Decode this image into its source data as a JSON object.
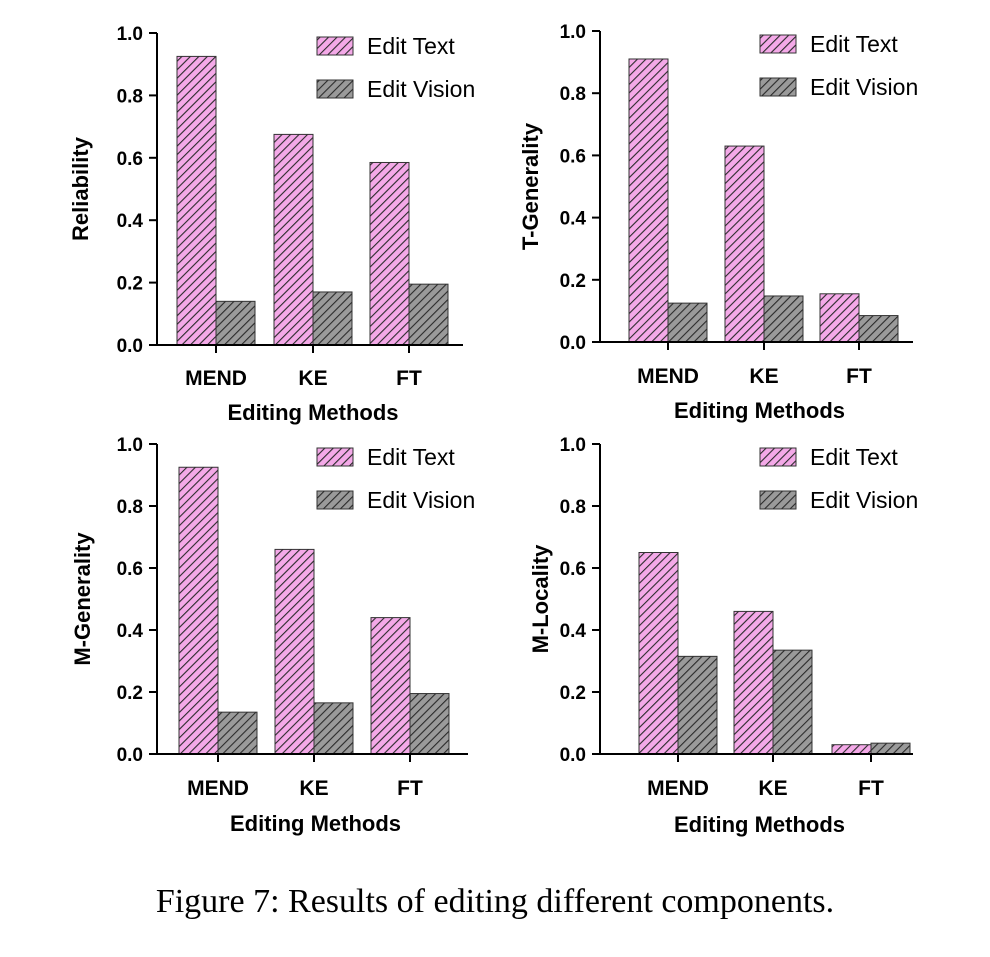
{
  "caption": "Figure 7: Results of editing different components.",
  "colors": {
    "edit_text": "#f4a9e8",
    "edit_vision": "#9a9a9a",
    "hatch": "#2a2a2a",
    "axis": "#000000"
  },
  "chart_data": [
    {
      "type": "bar",
      "categories": [
        "MEND",
        "KE",
        "FT"
      ],
      "series": [
        {
          "name": "Edit Text",
          "values": [
            0.925,
            0.675,
            0.585
          ]
        },
        {
          "name": "Edit Vision",
          "values": [
            0.14,
            0.17,
            0.195
          ]
        }
      ],
      "xlabel": "Editing Methods",
      "ylabel": "Reliability",
      "ylim": [
        0,
        1.0
      ],
      "yticks": [
        "0.0",
        "0.2",
        "0.4",
        "0.6",
        "0.8",
        "1.0"
      ],
      "legend": "top-right",
      "grid": false
    },
    {
      "type": "bar",
      "categories": [
        "MEND",
        "KE",
        "FT"
      ],
      "series": [
        {
          "name": "Edit Text",
          "values": [
            0.91,
            0.63,
            0.155
          ]
        },
        {
          "name": "Edit Vision",
          "values": [
            0.125,
            0.148,
            0.085
          ]
        }
      ],
      "xlabel": "Editing Methods",
      "ylabel": "T-Generality",
      "ylim": [
        0,
        1.0
      ],
      "yticks": [
        "0.0",
        "0.2",
        "0.4",
        "0.6",
        "0.8",
        "1.0"
      ],
      "legend": "top-right",
      "grid": false
    },
    {
      "type": "bar",
      "categories": [
        "MEND",
        "KE",
        "FT"
      ],
      "series": [
        {
          "name": "Edit Text",
          "values": [
            0.925,
            0.66,
            0.44
          ]
        },
        {
          "name": "Edit Vision",
          "values": [
            0.135,
            0.165,
            0.195
          ]
        }
      ],
      "xlabel": "Editing Methods",
      "ylabel": "M-Generality",
      "ylim": [
        0,
        1.0
      ],
      "yticks": [
        "0.0",
        "0.2",
        "0.4",
        "0.6",
        "0.8",
        "1.0"
      ],
      "legend": "top-right",
      "grid": false
    },
    {
      "type": "bar",
      "categories": [
        "MEND",
        "KE",
        "FT"
      ],
      "series": [
        {
          "name": "Edit Text",
          "values": [
            0.65,
            0.46,
            0.03
          ]
        },
        {
          "name": "Edit Vision",
          "values": [
            0.315,
            0.335,
            0.035
          ]
        }
      ],
      "xlabel": "Editing Methods",
      "ylabel": "M-Locality",
      "ylim": [
        0,
        1.0
      ],
      "yticks": [
        "0.0",
        "0.2",
        "0.4",
        "0.6",
        "0.8",
        "1.0"
      ],
      "legend": "top-right",
      "grid": false
    }
  ]
}
